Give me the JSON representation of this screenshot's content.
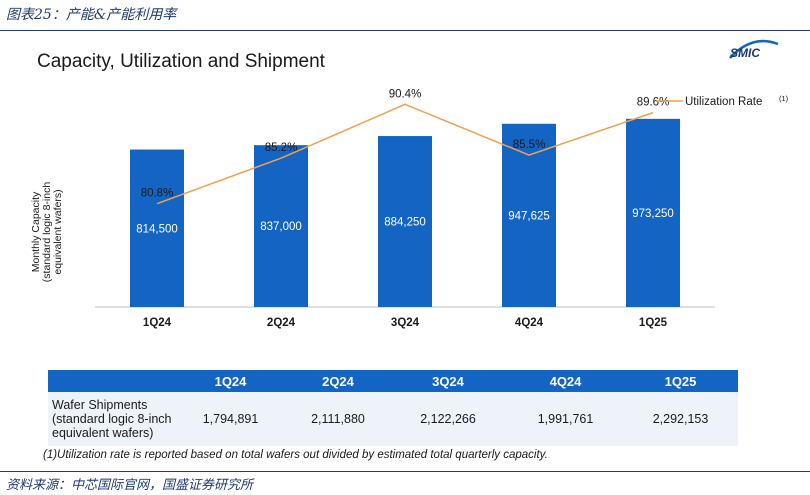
{
  "caption": "图表25：产能&产能利用率",
  "source": "资料来源：中芯国际官网，国盛证券研究所",
  "slide_title": "Capacity, Utilization and Shipment",
  "logo_text": "SMIC",
  "footnote": "(1)Utilization rate is reported based on total wafers out divided by estimated total quarterly capacity.",
  "colors": {
    "bar": "#1464c3",
    "line": "#f0a050",
    "title_blue": "#1f3a70",
    "table_body": "#eef3fa"
  },
  "chart_data": {
    "type": "bar",
    "categories": [
      "1Q24",
      "2Q24",
      "3Q24",
      "4Q24",
      "1Q25"
    ],
    "ylabel_lines": [
      "Monthly Capacity",
      "(standard logic 8-inch",
      "equivalent wafers)"
    ],
    "series": [
      {
        "values": [
          814500,
          837000,
          884250,
          947625,
          973250
        ],
        "labels": [
          "814,500",
          "837,000",
          "884,250",
          "947,625",
          "973,250"
        ]
      },
      {
        "name": "Utilization Rate",
        "name_superscript": "(1)",
        "type": "line",
        "values": [
          80.8,
          85.2,
          90.4,
          85.5,
          89.6
        ],
        "labels": [
          "80.8%",
          "85.2%",
          "90.4%",
          "85.5%",
          "89.6%"
        ]
      }
    ],
    "ylim": [
      0,
      1500000
    ],
    "line_ylim": [
      0,
      100
    ],
    "legend": "top-right",
    "grid": false
  },
  "table": {
    "headers": [
      "",
      "1Q24",
      "2Q24",
      "3Q24",
      "4Q24",
      "1Q25"
    ],
    "row_label_lines": [
      "Wafer Shipments",
      "(standard logic 8-inch",
      "equivalent wafers)"
    ],
    "values": [
      "1,794,891",
      "2,111,880",
      "2,122,266",
      "1,991,761",
      "2,292,153"
    ]
  }
}
